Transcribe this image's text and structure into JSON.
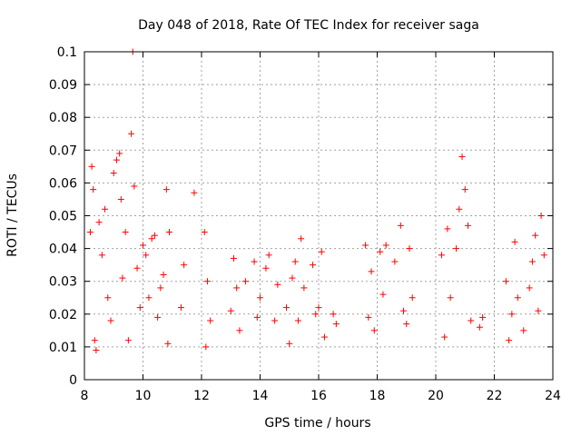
{
  "chart_data": {
    "type": "scatter",
    "title": "Day 048 of 2018, Rate Of TEC Index for receiver saga",
    "xlabel": "GPS time / hours",
    "ylabel": "ROTI / TECUs",
    "xlim": [
      8,
      24
    ],
    "ylim": [
      0,
      0.1
    ],
    "xticks": [
      8,
      10,
      12,
      14,
      16,
      18,
      20,
      22,
      24
    ],
    "yticks": [
      0,
      0.01,
      0.02,
      0.03,
      0.04,
      0.05,
      0.06,
      0.07,
      0.08,
      0.09,
      0.1
    ],
    "xtick_labels": [
      "8",
      "10",
      "12",
      "14",
      "16",
      "18",
      "20",
      "22",
      "24"
    ],
    "ytick_labels": [
      "0",
      "0.01",
      "0.02",
      "0.03",
      "0.04",
      "0.05",
      "0.06",
      "0.07",
      "0.08",
      "0.09",
      "0.1"
    ],
    "grid": true,
    "marker": "+",
    "color": "#ff0000",
    "series": [
      {
        "name": "ROTI",
        "points": [
          [
            8.2,
            0.045
          ],
          [
            8.25,
            0.065
          ],
          [
            8.3,
            0.058
          ],
          [
            8.35,
            0.012
          ],
          [
            8.4,
            0.009
          ],
          [
            8.5,
            0.048
          ],
          [
            8.6,
            0.038
          ],
          [
            8.7,
            0.052
          ],
          [
            8.8,
            0.025
          ],
          [
            8.9,
            0.018
          ],
          [
            9.0,
            0.063
          ],
          [
            9.1,
            0.067
          ],
          [
            9.2,
            0.069
          ],
          [
            9.25,
            0.055
          ],
          [
            9.3,
            0.031
          ],
          [
            9.4,
            0.045
          ],
          [
            9.5,
            0.012
          ],
          [
            9.6,
            0.075
          ],
          [
            9.65,
            0.1
          ],
          [
            9.7,
            0.059
          ],
          [
            9.8,
            0.034
          ],
          [
            9.9,
            0.022
          ],
          [
            10.0,
            0.041
          ],
          [
            10.1,
            0.038
          ],
          [
            10.2,
            0.025
          ],
          [
            10.3,
            0.043
          ],
          [
            10.4,
            0.044
          ],
          [
            10.5,
            0.019
          ],
          [
            10.6,
            0.028
          ],
          [
            10.7,
            0.032
          ],
          [
            10.8,
            0.058
          ],
          [
            10.85,
            0.011
          ],
          [
            10.9,
            0.045
          ],
          [
            11.3,
            0.022
          ],
          [
            11.4,
            0.035
          ],
          [
            11.75,
            0.057
          ],
          [
            12.1,
            0.045
          ],
          [
            12.15,
            0.01
          ],
          [
            12.2,
            0.03
          ],
          [
            12.3,
            0.018
          ],
          [
            13.0,
            0.021
          ],
          [
            13.1,
            0.037
          ],
          [
            13.2,
            0.028
          ],
          [
            13.3,
            0.015
          ],
          [
            13.5,
            0.03
          ],
          [
            13.8,
            0.036
          ],
          [
            13.9,
            0.019
          ],
          [
            14.0,
            0.025
          ],
          [
            14.2,
            0.034
          ],
          [
            14.3,
            0.038
          ],
          [
            14.5,
            0.018
          ],
          [
            14.6,
            0.029
          ],
          [
            14.9,
            0.022
          ],
          [
            15.0,
            0.011
          ],
          [
            15.1,
            0.031
          ],
          [
            15.2,
            0.036
          ],
          [
            15.3,
            0.018
          ],
          [
            15.4,
            0.043
          ],
          [
            15.5,
            0.028
          ],
          [
            15.8,
            0.035
          ],
          [
            15.9,
            0.02
          ],
          [
            16.0,
            0.022
          ],
          [
            16.1,
            0.039
          ],
          [
            16.2,
            0.013
          ],
          [
            16.5,
            0.02
          ],
          [
            16.6,
            0.017
          ],
          [
            17.6,
            0.041
          ],
          [
            17.7,
            0.019
          ],
          [
            17.8,
            0.033
          ],
          [
            17.9,
            0.015
          ],
          [
            18.1,
            0.039
          ],
          [
            18.2,
            0.026
          ],
          [
            18.3,
            0.041
          ],
          [
            18.6,
            0.036
          ],
          [
            18.8,
            0.047
          ],
          [
            18.9,
            0.021
          ],
          [
            19.0,
            0.017
          ],
          [
            19.1,
            0.04
          ],
          [
            19.2,
            0.025
          ],
          [
            20.2,
            0.038
          ],
          [
            20.3,
            0.013
          ],
          [
            20.4,
            0.046
          ],
          [
            20.5,
            0.025
          ],
          [
            20.7,
            0.04
          ],
          [
            20.8,
            0.052
          ],
          [
            20.9,
            0.068
          ],
          [
            21.0,
            0.058
          ],
          [
            21.1,
            0.047
          ],
          [
            21.2,
            0.018
          ],
          [
            21.5,
            0.016
          ],
          [
            21.6,
            0.019
          ],
          [
            22.4,
            0.03
          ],
          [
            22.5,
            0.012
          ],
          [
            22.6,
            0.02
          ],
          [
            22.7,
            0.042
          ],
          [
            22.8,
            0.025
          ],
          [
            23.0,
            0.015
          ],
          [
            23.2,
            0.028
          ],
          [
            23.3,
            0.036
          ],
          [
            23.4,
            0.044
          ],
          [
            23.5,
            0.021
          ],
          [
            23.6,
            0.05
          ],
          [
            23.7,
            0.038
          ]
        ]
      }
    ]
  }
}
